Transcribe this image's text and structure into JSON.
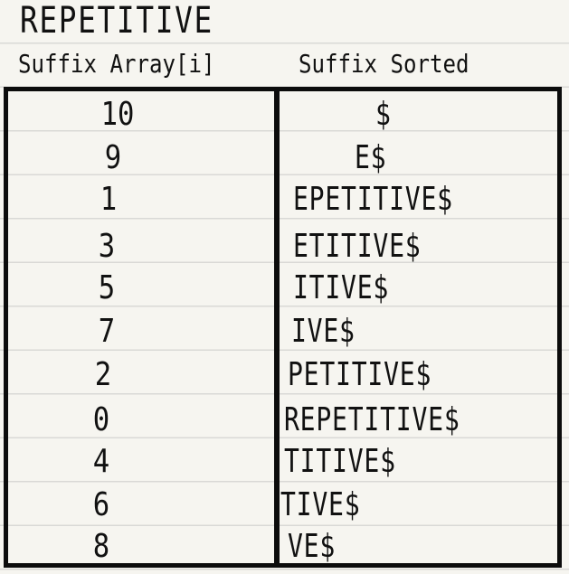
{
  "word": "REPETITIVE",
  "headers": {
    "left": "Suffix Array[i]",
    "right": "Suffix Sorted"
  },
  "rows": [
    {
      "index": "10",
      "suffix": "$"
    },
    {
      "index": "9",
      "suffix": "E$"
    },
    {
      "index": "1",
      "suffix": "EPETITIVE$"
    },
    {
      "index": "3",
      "suffix": "ETITIVE$"
    },
    {
      "index": "5",
      "suffix": "ITIVE$"
    },
    {
      "index": "7",
      "suffix": "IVE$"
    },
    {
      "index": "2",
      "suffix": "PETITIVE$"
    },
    {
      "index": "0",
      "suffix": "REPETITIVE$"
    },
    {
      "index": "4",
      "suffix": "TITIVE$"
    },
    {
      "index": "6",
      "suffix": "TIVE$"
    },
    {
      "index": "8",
      "suffix": "VE$"
    }
  ]
}
